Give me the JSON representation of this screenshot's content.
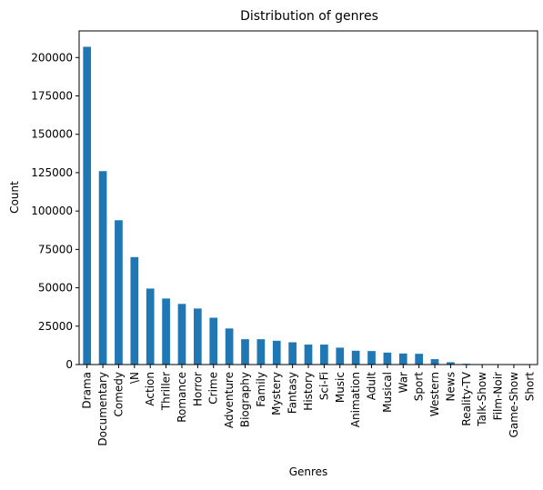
{
  "chart_data": {
    "type": "bar",
    "title": "Distribution of genres",
    "xlabel": "Genres",
    "ylabel": "Count",
    "categories": [
      "Drama",
      "Documentary",
      "Comedy",
      "\\N",
      "Action",
      "Thriller",
      "Romance",
      "Horror",
      "Crime",
      "Adventure",
      "Biography",
      "Family",
      "Mystery",
      "Fantasy",
      "History",
      "Sci-Fi",
      "Music",
      "Animation",
      "Adult",
      "Musical",
      "War",
      "Sport",
      "Western",
      "News",
      "Reality-TV",
      "Talk-Show",
      "Film-Noir",
      "Game-Show",
      "Short"
    ],
    "values": [
      207000,
      126000,
      94000,
      70000,
      49500,
      43000,
      39500,
      36500,
      30500,
      23500,
      16500,
      16500,
      15500,
      14500,
      13000,
      13000,
      11000,
      9000,
      8800,
      7800,
      7200,
      7000,
      3500,
      1500,
      500,
      100,
      100,
      50,
      20
    ],
    "ylim": [
      0,
      217350
    ],
    "yticks": [
      0,
      25000,
      50000,
      75000,
      100000,
      125000,
      150000,
      175000,
      200000
    ],
    "bar_color": "#1f77b4",
    "grid": false,
    "legend": "none"
  }
}
